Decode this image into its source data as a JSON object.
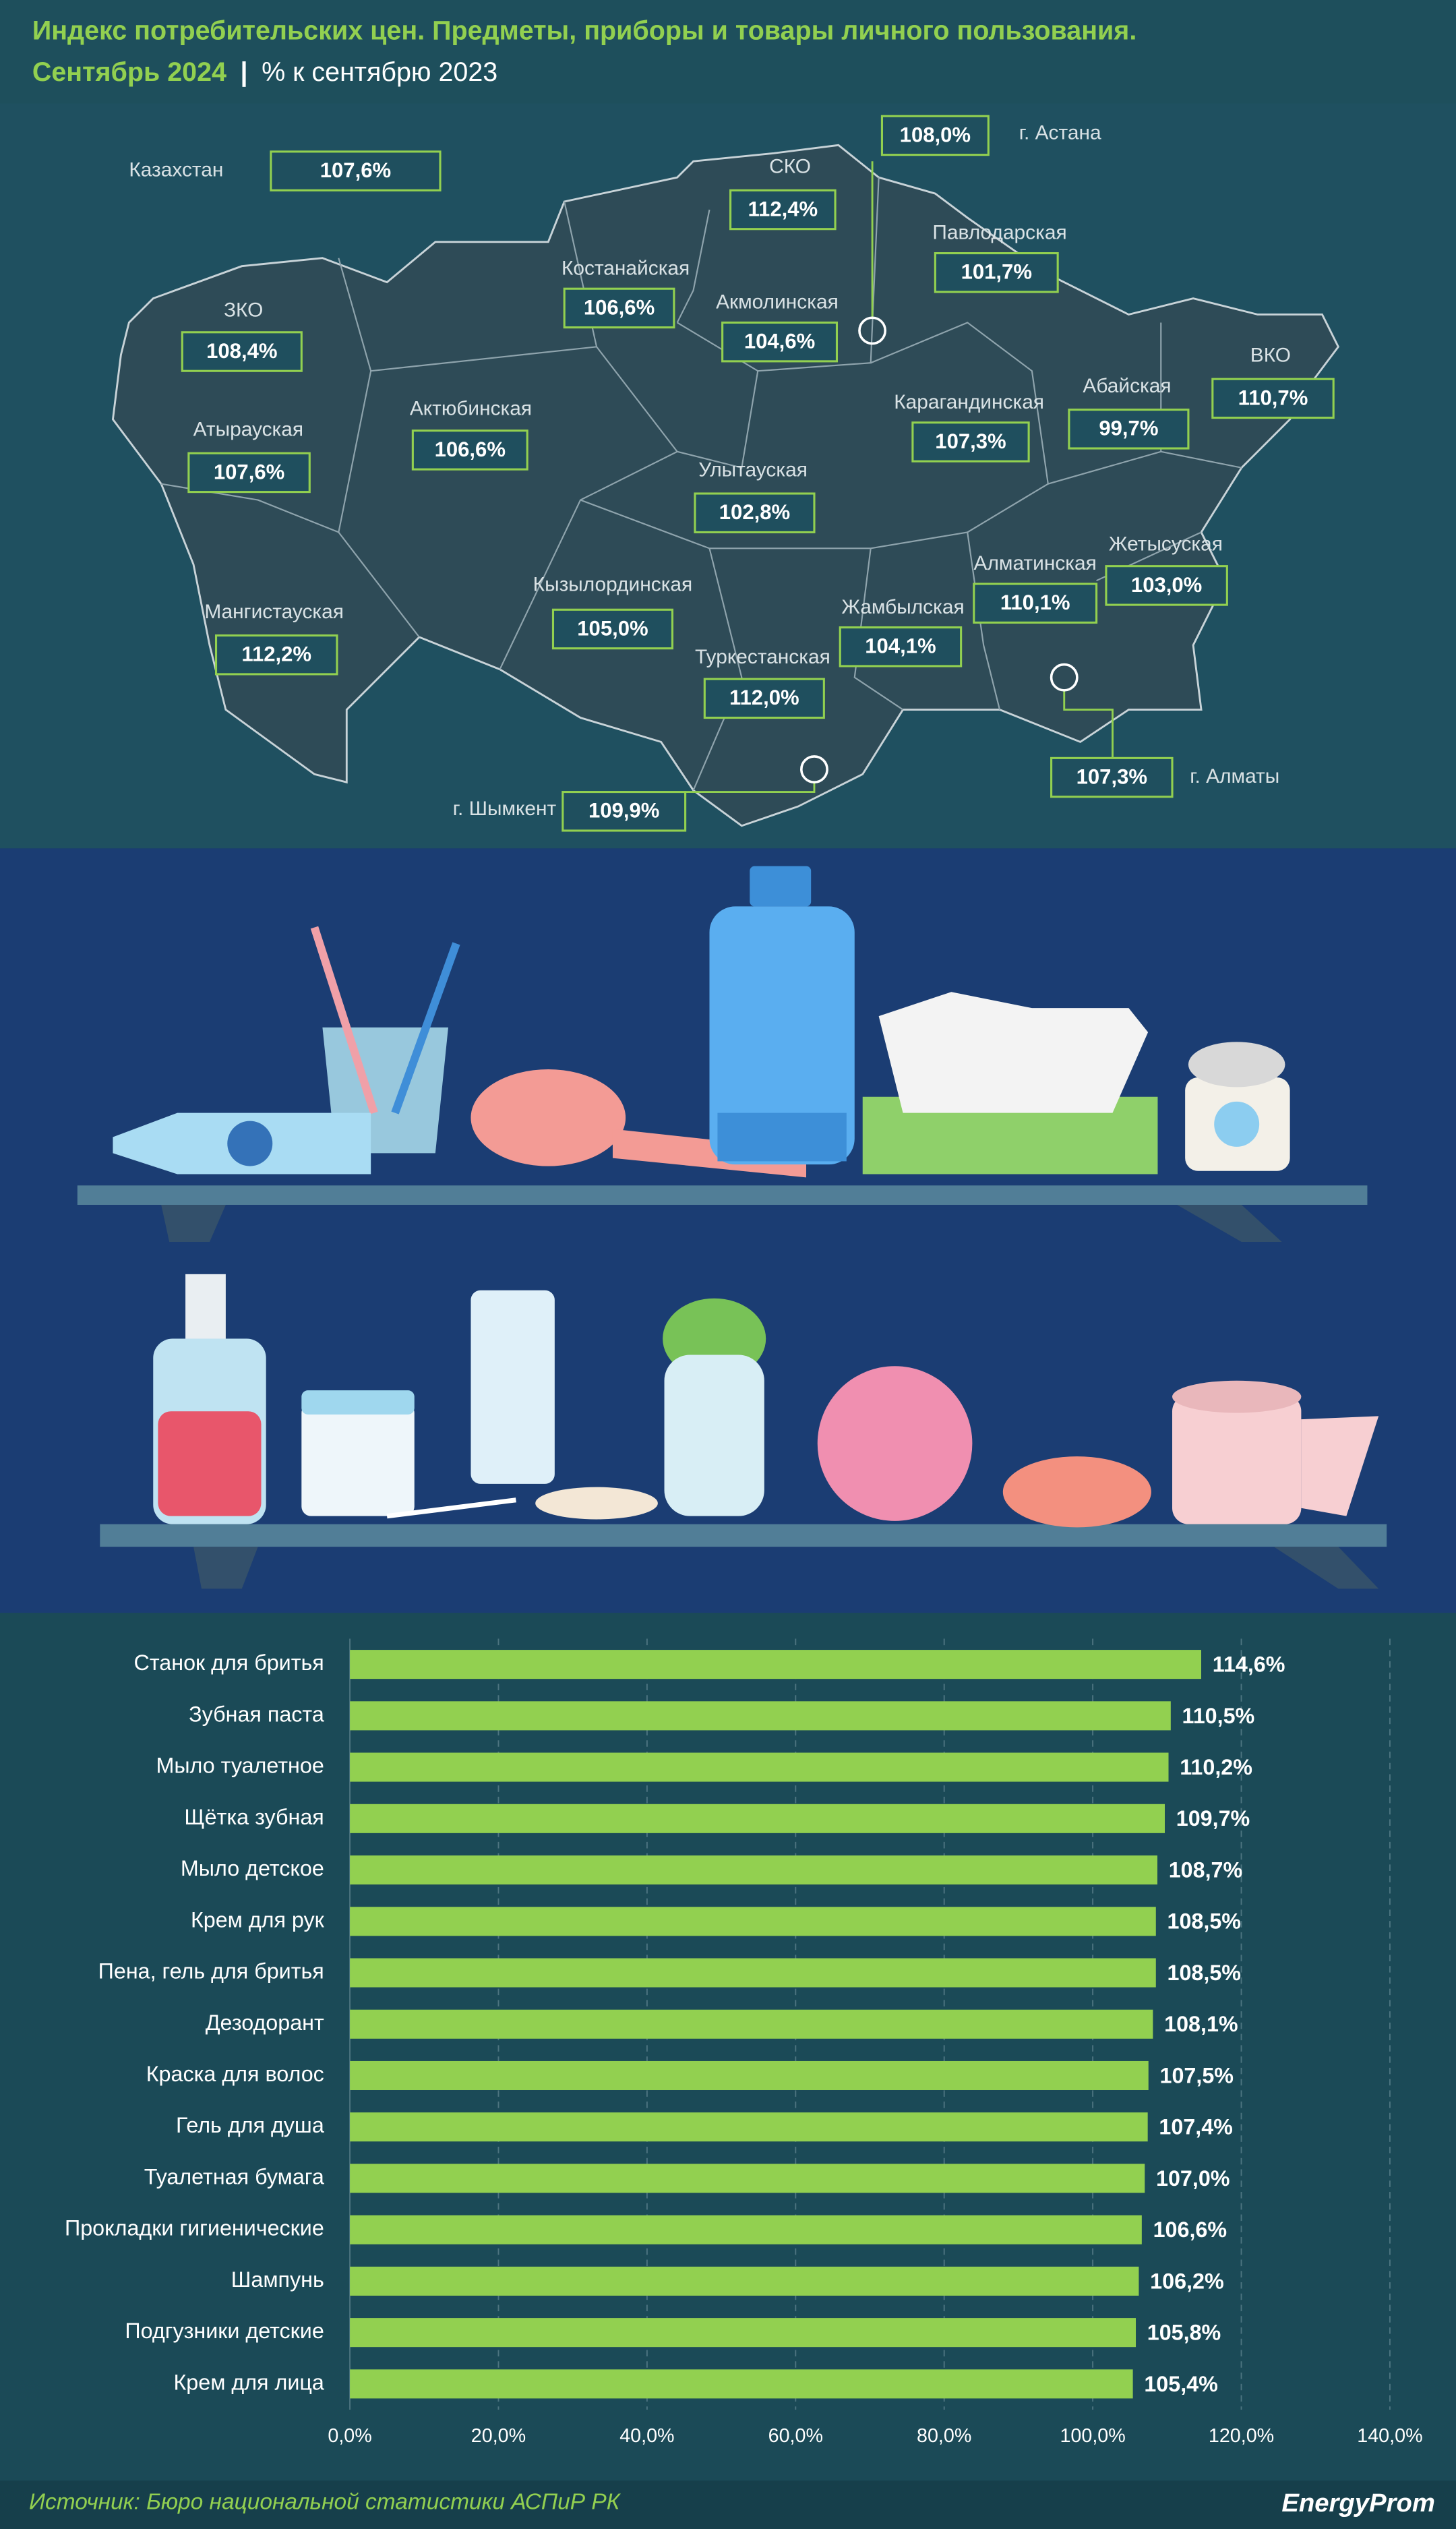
{
  "header": {
    "title": "Индекс потребительских цен. Предметы, приборы и товары личного пользования.",
    "period": "Сентябрь 2024",
    "separator": "|",
    "unit": "% к сентябрю 2023"
  },
  "map": {
    "regions": [
      {
        "name": "Казахстан",
        "value": "107,6%"
      },
      {
        "name": "г. Астана",
        "value": "108,0%"
      },
      {
        "name": "СКО",
        "value": "112,4%"
      },
      {
        "name": "Павлодарская",
        "value": "101,7%"
      },
      {
        "name": "Костанайская",
        "value": "106,6%"
      },
      {
        "name": "Акмолинская",
        "value": "104,6%"
      },
      {
        "name": "ЗКО",
        "value": "108,4%"
      },
      {
        "name": "ВКО",
        "value": "110,7%"
      },
      {
        "name": "Абайская",
        "value": "99,7%"
      },
      {
        "name": "Карагандинская",
        "value": "107,3%"
      },
      {
        "name": "Актюбинская",
        "value": "106,6%"
      },
      {
        "name": "Атырауская",
        "value": "107,6%"
      },
      {
        "name": "Улытауская",
        "value": "102,8%"
      },
      {
        "name": "Жетысуская",
        "value": "103,0%"
      },
      {
        "name": "Алматинская",
        "value": "110,1%"
      },
      {
        "name": "Кызылординская",
        "value": "105,0%"
      },
      {
        "name": "Жамбылская",
        "value": "104,1%"
      },
      {
        "name": "Мангистауская",
        "value": "112,2%"
      },
      {
        "name": "Туркестанская",
        "value": "112,0%"
      },
      {
        "name": "г. Алматы",
        "value": "107,3%"
      },
      {
        "name": "г. Шымкент",
        "value": "109,9%"
      }
    ]
  },
  "chart_data": {
    "type": "bar",
    "orientation": "horizontal",
    "color": "#92d050",
    "grid": true,
    "categories": [
      "Станок для бритья",
      "Зубная паста",
      "Мыло туалетное",
      "Щётка зубная",
      "Мыло детское",
      "Крем для рук",
      "Пена, гель для бритья",
      "Дезодорант",
      "Краска для волос",
      "Гель для душа",
      "Туалетная бумага",
      "Прокладки гигиенические",
      "Шампунь",
      "Подгузники детские",
      "Крем для лица"
    ],
    "values": [
      114.6,
      110.5,
      110.2,
      109.7,
      108.7,
      108.5,
      108.5,
      108.1,
      107.5,
      107.4,
      107.0,
      106.6,
      106.2,
      105.8,
      105.4
    ],
    "value_labels": [
      "114,6%",
      "110,5%",
      "110,2%",
      "109,7%",
      "108,7%",
      "108,5%",
      "108,5%",
      "108,1%",
      "107,5%",
      "107,4%",
      "107,0%",
      "106,6%",
      "106,2%",
      "105,8%",
      "105,4%"
    ],
    "xlim": [
      0,
      140
    ],
    "xticks": [
      {
        "value": 0,
        "label": "0,0%"
      },
      {
        "value": 20,
        "label": "20,0%"
      },
      {
        "value": 40,
        "label": "40,0%"
      },
      {
        "value": 60,
        "label": "60,0%"
      },
      {
        "value": 80,
        "label": "80,0%"
      },
      {
        "value": 100,
        "label": "100,0%"
      },
      {
        "value": 120,
        "label": "120,0%"
      },
      {
        "value": 140,
        "label": "140,0%"
      }
    ]
  },
  "footer": {
    "source": "Источник: Бюро национальной статистики АСПиР РК",
    "logo": "EnergyProm"
  }
}
